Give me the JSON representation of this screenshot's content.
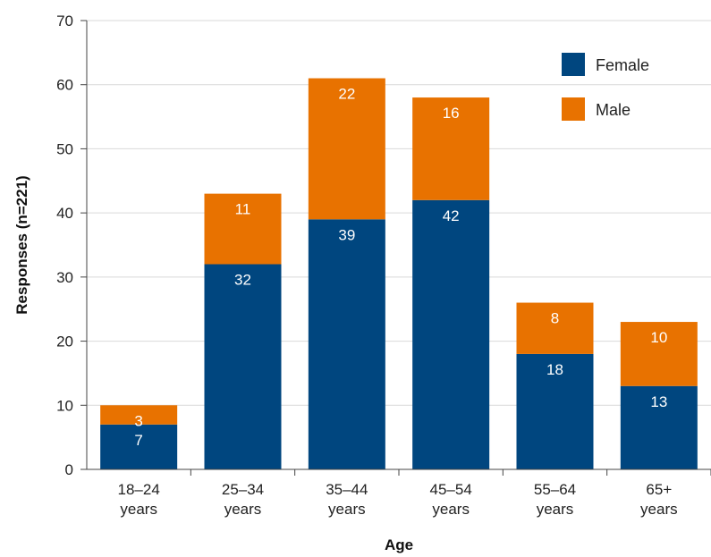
{
  "chart_data": {
    "type": "bar",
    "stacked": true,
    "categories": [
      [
        "18–24",
        "years"
      ],
      [
        "25–34",
        "years"
      ],
      [
        "35–44",
        "years"
      ],
      [
        "45–54",
        "years"
      ],
      [
        "55–64",
        "years"
      ],
      [
        "65+",
        "years"
      ]
    ],
    "series": [
      {
        "name": "Female",
        "color": "#00467f",
        "values": [
          7,
          32,
          39,
          42,
          18,
          13
        ]
      },
      {
        "name": "Male",
        "color": "#e87200",
        "values": [
          3,
          11,
          22,
          16,
          8,
          10
        ]
      }
    ],
    "title": "",
    "xlabel": "Age",
    "ylabel": "Responses (n=221)",
    "ylim": [
      0,
      70
    ],
    "yticks": [
      0,
      10,
      20,
      30,
      40,
      50,
      60,
      70
    ],
    "grid": true,
    "legend_position": "top-right"
  }
}
